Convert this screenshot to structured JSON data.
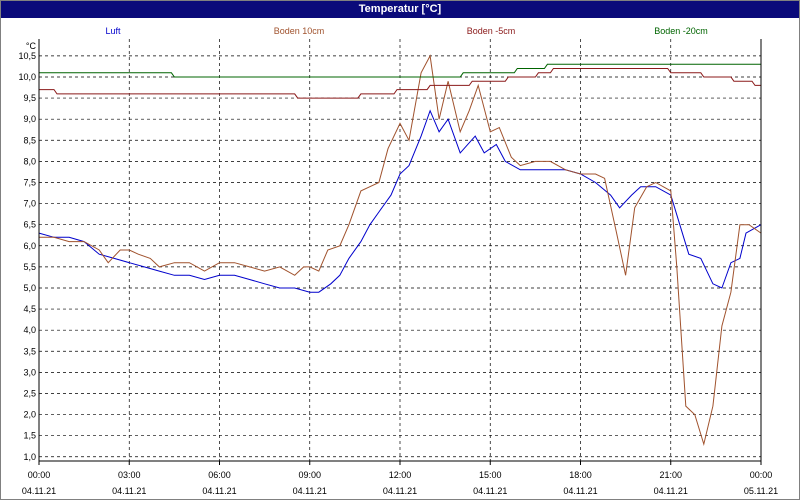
{
  "window": {
    "title": "Temperatur [°C]"
  },
  "chart_data": {
    "type": "line",
    "title": "Temperatur [°C]",
    "ylabel": "°C",
    "ylim": [
      0.9,
      10.9
    ],
    "xlim": [
      0,
      24
    ],
    "grid": true,
    "legend_placement": "top",
    "y_ticks": [
      "1,0",
      "1,5",
      "2,0",
      "2,5",
      "3,0",
      "3,5",
      "4,0",
      "4,5",
      "5,0",
      "5,5",
      "6,0",
      "6,5",
      "7,0",
      "7,5",
      "8,0",
      "8,5",
      "9,0",
      "9,5",
      "10,0",
      "10,5"
    ],
    "x_ticks": [
      {
        "time": "00:00",
        "date": "04.11.21"
      },
      {
        "time": "03:00",
        "date": "04.11.21"
      },
      {
        "time": "06:00",
        "date": "04.11.21"
      },
      {
        "time": "09:00",
        "date": "04.11.21"
      },
      {
        "time": "12:00",
        "date": "04.11.21"
      },
      {
        "time": "15:00",
        "date": "04.11.21"
      },
      {
        "time": "18:00",
        "date": "04.11.21"
      },
      {
        "time": "21:00",
        "date": "04.11.21"
      },
      {
        "time": "00:00",
        "date": "05.11.21"
      }
    ],
    "series": [
      {
        "name": "Luft",
        "color": "#0000cc",
        "points": [
          [
            0,
            6.3
          ],
          [
            0.5,
            6.2
          ],
          [
            1,
            6.2
          ],
          [
            1.5,
            6.1
          ],
          [
            2,
            5.8
          ],
          [
            2.5,
            5.7
          ],
          [
            3,
            5.6
          ],
          [
            3.5,
            5.5
          ],
          [
            4,
            5.4
          ],
          [
            4.5,
            5.3
          ],
          [
            5,
            5.3
          ],
          [
            5.5,
            5.2
          ],
          [
            6,
            5.3
          ],
          [
            6.5,
            5.3
          ],
          [
            7,
            5.2
          ],
          [
            7.5,
            5.1
          ],
          [
            8,
            5.0
          ],
          [
            8.5,
            5.0
          ],
          [
            9,
            4.9
          ],
          [
            9.3,
            4.9
          ],
          [
            9.7,
            5.1
          ],
          [
            10,
            5.3
          ],
          [
            10.3,
            5.7
          ],
          [
            10.7,
            6.1
          ],
          [
            11,
            6.5
          ],
          [
            11.3,
            6.8
          ],
          [
            11.7,
            7.2
          ],
          [
            12,
            7.7
          ],
          [
            12.3,
            7.9
          ],
          [
            12.7,
            8.6
          ],
          [
            13,
            9.2
          ],
          [
            13.3,
            8.7
          ],
          [
            13.6,
            9.0
          ],
          [
            14,
            8.2
          ],
          [
            14.5,
            8.6
          ],
          [
            14.8,
            8.2
          ],
          [
            15.2,
            8.4
          ],
          [
            15.5,
            8.0
          ],
          [
            16,
            7.8
          ],
          [
            16.5,
            7.8
          ],
          [
            17,
            7.8
          ],
          [
            17.5,
            7.8
          ],
          [
            18,
            7.7
          ],
          [
            18.5,
            7.5
          ],
          [
            19,
            7.2
          ],
          [
            19.3,
            6.9
          ],
          [
            19.7,
            7.2
          ],
          [
            20,
            7.4
          ],
          [
            20.5,
            7.4
          ],
          [
            21,
            7.2
          ],
          [
            21.3,
            6.5
          ],
          [
            21.6,
            5.8
          ],
          [
            22,
            5.7
          ],
          [
            22.4,
            5.1
          ],
          [
            22.7,
            5.0
          ],
          [
            23,
            5.6
          ],
          [
            23.3,
            5.7
          ],
          [
            23.5,
            6.3
          ],
          [
            24,
            6.5
          ]
        ]
      },
      {
        "name": "Boden 10cm",
        "color": "#a0522d",
        "points": [
          [
            0,
            6.2
          ],
          [
            0.5,
            6.2
          ],
          [
            1,
            6.1
          ],
          [
            1.5,
            6.1
          ],
          [
            2,
            5.9
          ],
          [
            2.3,
            5.6
          ],
          [
            2.7,
            5.9
          ],
          [
            3,
            5.9
          ],
          [
            3.3,
            5.8
          ],
          [
            3.7,
            5.7
          ],
          [
            4,
            5.5
          ],
          [
            4.5,
            5.6
          ],
          [
            5,
            5.6
          ],
          [
            5.5,
            5.4
          ],
          [
            6,
            5.6
          ],
          [
            6.5,
            5.6
          ],
          [
            7,
            5.5
          ],
          [
            7.5,
            5.4
          ],
          [
            8,
            5.5
          ],
          [
            8.5,
            5.3
          ],
          [
            8.8,
            5.5
          ],
          [
            9,
            5.5
          ],
          [
            9.3,
            5.4
          ],
          [
            9.6,
            5.9
          ],
          [
            10,
            6.0
          ],
          [
            10.3,
            6.5
          ],
          [
            10.7,
            7.3
          ],
          [
            11,
            7.4
          ],
          [
            11.3,
            7.5
          ],
          [
            11.6,
            8.3
          ],
          [
            12,
            8.9
          ],
          [
            12.3,
            8.5
          ],
          [
            12.7,
            10.1
          ],
          [
            13,
            10.5
          ],
          [
            13.3,
            9.0
          ],
          [
            13.6,
            9.9
          ],
          [
            14,
            8.7
          ],
          [
            14.3,
            9.2
          ],
          [
            14.6,
            9.8
          ],
          [
            15,
            8.7
          ],
          [
            15.3,
            8.8
          ],
          [
            15.7,
            8.1
          ],
          [
            16,
            7.9
          ],
          [
            16.5,
            8.0
          ],
          [
            17,
            8.0
          ],
          [
            17.5,
            7.8
          ],
          [
            18,
            7.7
          ],
          [
            18.5,
            7.7
          ],
          [
            18.8,
            7.6
          ],
          [
            19.2,
            6.3
          ],
          [
            19.5,
            5.3
          ],
          [
            19.8,
            6.9
          ],
          [
            20.2,
            7.4
          ],
          [
            20.5,
            7.5
          ],
          [
            21,
            7.3
          ],
          [
            21.2,
            5.5
          ],
          [
            21.5,
            2.2
          ],
          [
            21.8,
            2.0
          ],
          [
            22.1,
            1.3
          ],
          [
            22.4,
            2.2
          ],
          [
            22.7,
            4.1
          ],
          [
            23,
            4.9
          ],
          [
            23.3,
            6.5
          ],
          [
            23.6,
            6.5
          ],
          [
            24,
            6.3
          ]
        ]
      },
      {
        "name": "Boden -5cm",
        "color": "#8b1a1a",
        "points": [
          [
            0,
            9.7
          ],
          [
            0.5,
            9.7
          ],
          [
            0.6,
            9.6
          ],
          [
            4,
            9.6
          ],
          [
            8.5,
            9.6
          ],
          [
            8.6,
            9.5
          ],
          [
            10.6,
            9.5
          ],
          [
            10.7,
            9.6
          ],
          [
            11.8,
            9.6
          ],
          [
            11.9,
            9.7
          ],
          [
            12.9,
            9.7
          ],
          [
            13,
            9.8
          ],
          [
            14.3,
            9.8
          ],
          [
            14.4,
            9.9
          ],
          [
            15.5,
            9.9
          ],
          [
            15.6,
            10.0
          ],
          [
            16.5,
            10.0
          ],
          [
            16.6,
            10.1
          ],
          [
            17,
            10.1
          ],
          [
            17.1,
            10.2
          ],
          [
            20.9,
            10.2
          ],
          [
            21,
            10.1
          ],
          [
            22,
            10.1
          ],
          [
            22.1,
            10.0
          ],
          [
            23,
            10.0
          ],
          [
            23.1,
            9.9
          ],
          [
            23.7,
            9.9
          ],
          [
            23.8,
            9.8
          ],
          [
            24,
            9.8
          ]
        ]
      },
      {
        "name": "Boden -20cm",
        "color": "#006400",
        "points": [
          [
            0,
            10.1
          ],
          [
            4.4,
            10.1
          ],
          [
            4.5,
            10.0
          ],
          [
            13,
            10.0
          ],
          [
            13.5,
            10.0
          ],
          [
            13.6,
            10.0
          ],
          [
            14.0,
            10.0
          ],
          [
            14.1,
            10.1
          ],
          [
            15.8,
            10.1
          ],
          [
            15.9,
            10.2
          ],
          [
            16.8,
            10.2
          ],
          [
            16.9,
            10.3
          ],
          [
            24,
            10.3
          ]
        ]
      }
    ]
  }
}
